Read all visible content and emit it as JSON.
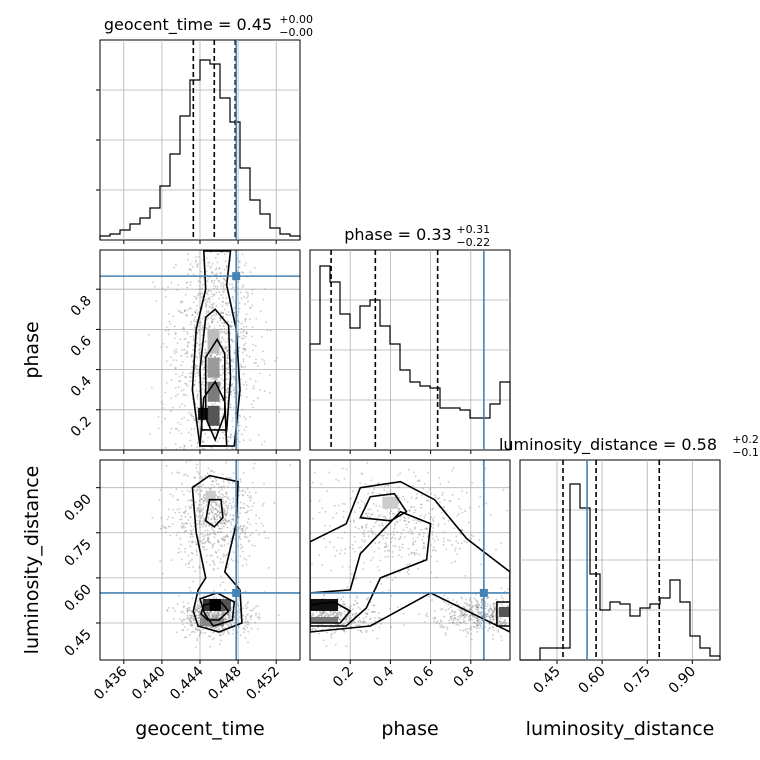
{
  "chart_data": {
    "type": "corner",
    "truth_color": "#4682b4",
    "parameters": [
      {
        "name": "geocent_time",
        "range": [
          0.4335,
          0.4545
        ],
        "ticks": [
          0.436,
          0.44,
          0.444,
          0.448,
          0.452
        ],
        "tick_labels": [
          "0.436",
          "0.440",
          "0.444",
          "0.448",
          "0.452"
        ],
        "truth": 0.4478,
        "quantiles": [
          0.4433,
          0.4455,
          0.4477
        ],
        "title": {
          "base": "geocent_time = 0.45",
          "plus": "+0.00",
          "minus": "−0.00"
        }
      },
      {
        "name": "phase",
        "range": [
          0.0,
          0.995
        ],
        "ticks": [
          0.2,
          0.4,
          0.6,
          0.8
        ],
        "tick_labels": [
          "0.2",
          "0.4",
          "0.6",
          "0.8"
        ],
        "truth": 0.865,
        "quantiles": [
          0.105,
          0.325,
          0.635
        ],
        "title": {
          "base": "phase = 0.33",
          "plus": "+0.31",
          "minus": "−0.22"
        }
      },
      {
        "name": "luminosity_distance",
        "range": [
          0.327,
          0.992
        ],
        "ticks": [
          0.45,
          0.6,
          0.75,
          0.9
        ],
        "tick_labels": [
          "0.45",
          "0.60",
          "0.75",
          "0.90"
        ],
        "truth": 0.55,
        "quantiles": [
          0.47,
          0.58,
          0.79
        ],
        "title": {
          "base": "luminosity_distance = 0.58",
          "plus": "+0.21",
          "minus": "−0.11"
        }
      }
    ],
    "histograms": [
      [
        0.02,
        0.03,
        0.05,
        0.08,
        0.11,
        0.16,
        0.27,
        0.43,
        0.62,
        0.8,
        0.9,
        0.88,
        0.71,
        0.59,
        0.36,
        0.2,
        0.13,
        0.06,
        0.03,
        0.02
      ],
      [
        0.53,
        0.92,
        0.84,
        0.68,
        0.61,
        0.72,
        0.75,
        0.62,
        0.53,
        0.4,
        0.34,
        0.32,
        0.31,
        0.21,
        0.21,
        0.2,
        0.16,
        0.16,
        0.23,
        0.34
      ],
      [
        0.0,
        0.0,
        0.06,
        0.06,
        0.06,
        0.88,
        0.76,
        0.43,
        0.25,
        0.29,
        0.28,
        0.22,
        0.26,
        0.28,
        0.31,
        0.4,
        0.29,
        0.12,
        0.06,
        0.02
      ]
    ]
  }
}
